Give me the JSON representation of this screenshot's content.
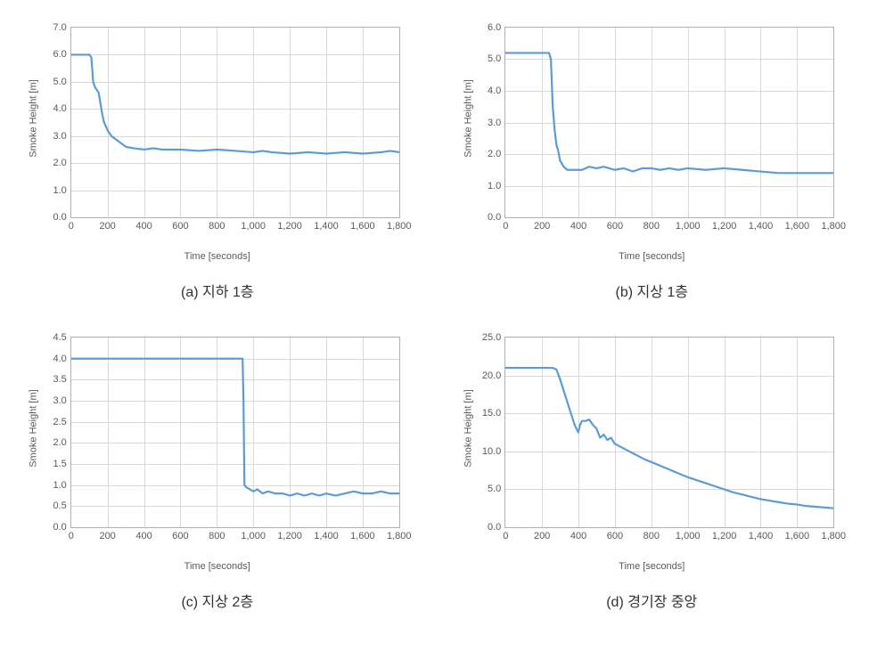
{
  "figure": {
    "grid_color": "#d9d9d9",
    "border_color": "#b0b0b0",
    "tick_color": "#595959",
    "background": "#ffffff",
    "label_fontsize": 11,
    "caption_fontsize": 16,
    "panels": [
      {
        "id": "a",
        "caption": "(a) 지하 1층",
        "type": "line",
        "xlabel": "Time [seconds]",
        "ylabel": "Smoke Height [m]",
        "xlim": [
          0,
          1800
        ],
        "xtick_step": 200,
        "xticks": [
          "0",
          "200",
          "400",
          "600",
          "800",
          "1,000",
          "1,200",
          "1,400",
          "1,600",
          "1,800"
        ],
        "ylim": [
          0,
          7
        ],
        "ytick_step": 1.0,
        "yticks": [
          "0.0",
          "1.0",
          "2.0",
          "3.0",
          "4.0",
          "5.0",
          "6.0",
          "7.0"
        ],
        "line_color": "#5b9bd5",
        "line_width": 2.2,
        "data_points": [
          [
            0,
            6.0
          ],
          [
            60,
            6.0
          ],
          [
            100,
            6.0
          ],
          [
            110,
            5.9
          ],
          [
            120,
            5.0
          ],
          [
            130,
            4.8
          ],
          [
            140,
            4.7
          ],
          [
            150,
            4.6
          ],
          [
            160,
            4.2
          ],
          [
            170,
            3.8
          ],
          [
            180,
            3.5
          ],
          [
            200,
            3.2
          ],
          [
            220,
            3.0
          ],
          [
            240,
            2.9
          ],
          [
            260,
            2.8
          ],
          [
            280,
            2.7
          ],
          [
            300,
            2.6
          ],
          [
            340,
            2.55
          ],
          [
            400,
            2.5
          ],
          [
            450,
            2.55
          ],
          [
            500,
            2.5
          ],
          [
            600,
            2.5
          ],
          [
            700,
            2.45
          ],
          [
            800,
            2.5
          ],
          [
            900,
            2.45
          ],
          [
            1000,
            2.4
          ],
          [
            1050,
            2.45
          ],
          [
            1100,
            2.4
          ],
          [
            1200,
            2.35
          ],
          [
            1300,
            2.4
          ],
          [
            1400,
            2.35
          ],
          [
            1500,
            2.4
          ],
          [
            1600,
            2.35
          ],
          [
            1700,
            2.4
          ],
          [
            1750,
            2.45
          ],
          [
            1800,
            2.4
          ]
        ]
      },
      {
        "id": "b",
        "caption": "(b) 지상 1층",
        "type": "line",
        "xlabel": "Time [seconds]",
        "ylabel": "Smoke Height [m]",
        "xlim": [
          0,
          1800
        ],
        "xtick_step": 200,
        "xticks": [
          "0",
          "200",
          "400",
          "600",
          "800",
          "1,000",
          "1,200",
          "1,400",
          "1,600",
          "1,800"
        ],
        "ylim": [
          0,
          6
        ],
        "ytick_step": 1.0,
        "yticks": [
          "0.0",
          "1.0",
          "2.0",
          "3.0",
          "4.0",
          "5.0",
          "6.0"
        ],
        "line_color": "#5b9bd5",
        "line_width": 2.2,
        "data_points": [
          [
            0,
            5.2
          ],
          [
            100,
            5.2
          ],
          [
            200,
            5.2
          ],
          [
            240,
            5.2
          ],
          [
            250,
            5.0
          ],
          [
            260,
            3.5
          ],
          [
            270,
            2.8
          ],
          [
            280,
            2.3
          ],
          [
            290,
            2.1
          ],
          [
            300,
            1.8
          ],
          [
            320,
            1.6
          ],
          [
            340,
            1.5
          ],
          [
            380,
            1.5
          ],
          [
            420,
            1.5
          ],
          [
            460,
            1.6
          ],
          [
            500,
            1.55
          ],
          [
            540,
            1.6
          ],
          [
            600,
            1.5
          ],
          [
            650,
            1.55
          ],
          [
            700,
            1.45
          ],
          [
            750,
            1.55
          ],
          [
            800,
            1.55
          ],
          [
            850,
            1.5
          ],
          [
            900,
            1.55
          ],
          [
            950,
            1.5
          ],
          [
            1000,
            1.55
          ],
          [
            1100,
            1.5
          ],
          [
            1200,
            1.55
          ],
          [
            1300,
            1.5
          ],
          [
            1400,
            1.45
          ],
          [
            1500,
            1.4
          ],
          [
            1600,
            1.4
          ],
          [
            1700,
            1.4
          ],
          [
            1800,
            1.4
          ]
        ]
      },
      {
        "id": "c",
        "caption": "(c) 지상 2층",
        "type": "line",
        "xlabel": "Time [seconds]",
        "ylabel": "Smoke Height [m]",
        "xlim": [
          0,
          1800
        ],
        "xtick_step": 200,
        "xticks": [
          "0",
          "200",
          "400",
          "600",
          "800",
          "1,000",
          "1,200",
          "1,400",
          "1,600",
          "1,800"
        ],
        "ylim": [
          0,
          4.5
        ],
        "ytick_step": 0.5,
        "yticks": [
          "0.0",
          "0.5",
          "1.0",
          "1.5",
          "2.0",
          "2.5",
          "3.0",
          "3.5",
          "4.0",
          "4.5"
        ],
        "line_color": "#5b9bd5",
        "line_width": 2.2,
        "data_points": [
          [
            0,
            4.0
          ],
          [
            200,
            4.0
          ],
          [
            400,
            4.0
          ],
          [
            600,
            4.0
          ],
          [
            800,
            4.0
          ],
          [
            900,
            4.0
          ],
          [
            940,
            4.0
          ],
          [
            945,
            3.0
          ],
          [
            950,
            1.0
          ],
          [
            960,
            0.95
          ],
          [
            980,
            0.9
          ],
          [
            1000,
            0.85
          ],
          [
            1020,
            0.9
          ],
          [
            1050,
            0.8
          ],
          [
            1080,
            0.85
          ],
          [
            1120,
            0.8
          ],
          [
            1160,
            0.8
          ],
          [
            1200,
            0.75
          ],
          [
            1240,
            0.8
          ],
          [
            1280,
            0.75
          ],
          [
            1320,
            0.8
          ],
          [
            1360,
            0.75
          ],
          [
            1400,
            0.8
          ],
          [
            1450,
            0.75
          ],
          [
            1500,
            0.8
          ],
          [
            1550,
            0.85
          ],
          [
            1600,
            0.8
          ],
          [
            1650,
            0.8
          ],
          [
            1700,
            0.85
          ],
          [
            1750,
            0.8
          ],
          [
            1800,
            0.8
          ]
        ]
      },
      {
        "id": "d",
        "caption": "(d) 경기장 중앙",
        "type": "line",
        "xlabel": "Time [seconds]",
        "ylabel": "Smoke Height [m]",
        "xlim": [
          0,
          1800
        ],
        "xtick_step": 200,
        "xticks": [
          "0",
          "200",
          "400",
          "600",
          "800",
          "1,000",
          "1,200",
          "1,400",
          "1,600",
          "1,800"
        ],
        "ylim": [
          0,
          25
        ],
        "ytick_step": 5.0,
        "yticks": [
          "0.0",
          "5.0",
          "10.0",
          "15.0",
          "20.0",
          "25.0"
        ],
        "line_color": "#5b9bd5",
        "line_width": 2.2,
        "data_points": [
          [
            0,
            21.0
          ],
          [
            100,
            21.0
          ],
          [
            200,
            21.0
          ],
          [
            260,
            21.0
          ],
          [
            280,
            20.8
          ],
          [
            300,
            19.5
          ],
          [
            320,
            18.0
          ],
          [
            340,
            16.5
          ],
          [
            360,
            15.0
          ],
          [
            380,
            13.5
          ],
          [
            400,
            12.5
          ],
          [
            410,
            13.5
          ],
          [
            420,
            14.0
          ],
          [
            440,
            14.0
          ],
          [
            460,
            14.2
          ],
          [
            480,
            13.5
          ],
          [
            500,
            13.0
          ],
          [
            520,
            11.8
          ],
          [
            540,
            12.2
          ],
          [
            560,
            11.5
          ],
          [
            580,
            11.8
          ],
          [
            600,
            11.0
          ],
          [
            640,
            10.5
          ],
          [
            680,
            10.0
          ],
          [
            720,
            9.5
          ],
          [
            760,
            9.0
          ],
          [
            800,
            8.6
          ],
          [
            840,
            8.2
          ],
          [
            880,
            7.8
          ],
          [
            920,
            7.4
          ],
          [
            960,
            7.0
          ],
          [
            1000,
            6.6
          ],
          [
            1050,
            6.2
          ],
          [
            1100,
            5.8
          ],
          [
            1150,
            5.4
          ],
          [
            1200,
            5.0
          ],
          [
            1250,
            4.6
          ],
          [
            1300,
            4.3
          ],
          [
            1350,
            4.0
          ],
          [
            1400,
            3.7
          ],
          [
            1450,
            3.5
          ],
          [
            1500,
            3.3
          ],
          [
            1550,
            3.1
          ],
          [
            1600,
            3.0
          ],
          [
            1650,
            2.8
          ],
          [
            1700,
            2.7
          ],
          [
            1750,
            2.6
          ],
          [
            1800,
            2.5
          ]
        ]
      }
    ]
  }
}
